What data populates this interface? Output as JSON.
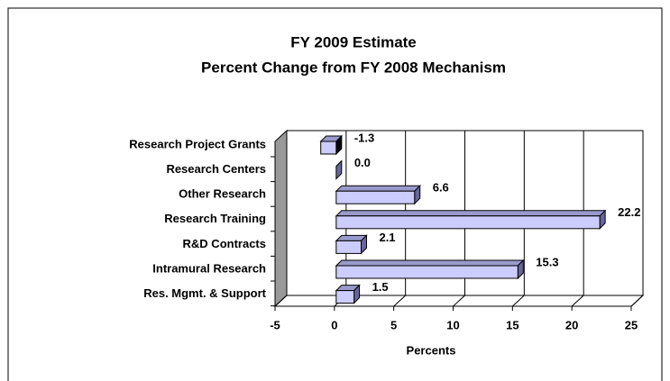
{
  "chart_data": {
    "type": "bar",
    "orientation": "horizontal",
    "title": "FY 2009 Estimate",
    "subtitle": "Percent Change from FY 2008 Mechanism",
    "categories": [
      "Research Project Grants",
      "Research Centers",
      "Other Research",
      "Research Training",
      "R&D Contracts",
      "Intramural Research",
      "Res. Mgmt. & Support"
    ],
    "values": [
      -1.3,
      0,
      6.6,
      22.2,
      2.1,
      15.3,
      1.5
    ],
    "value_labels": [
      "-1.3",
      "0.0",
      "6.6",
      "22.2",
      "2.1",
      "15.3",
      "1.5"
    ],
    "color": "#ccccff",
    "xlabel": "Percents",
    "xlim": [
      -5,
      25
    ],
    "xticks": [
      -5,
      0,
      5,
      10,
      15,
      20,
      25
    ],
    "grid": true
  }
}
